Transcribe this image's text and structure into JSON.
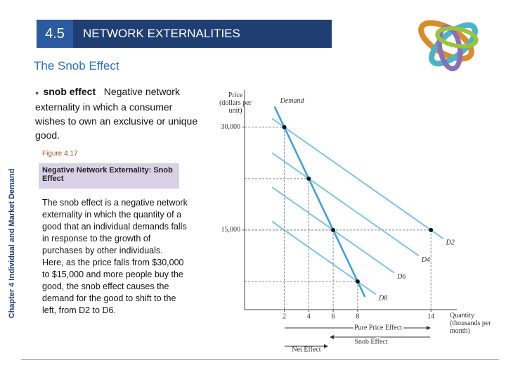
{
  "header": {
    "section": "4.5",
    "title": "NETWORK EXTERNALITIES"
  },
  "subtitle": "The Snob Effect",
  "side_label": "Chapter 4 Individual and Market Demand",
  "bullet": {
    "term": "snob effect",
    "text": "Negative network externality in which a consumer wishes to own an exclusive or unique good."
  },
  "figure": {
    "number": "Figure 4.17",
    "caption": "Negative Network Externality: Snob Effect",
    "paragraphs": [
      "The snob effect is a negative network externality in which the quantity of a good that an individual demands falls in response to the growth of purchases by other individuals.",
      "Here, as the price falls from $30,000 to $15,000 and more people buy the good, the snob effect causes the demand for the good to shift to the left, from D2 to D6."
    ]
  },
  "chart_data": {
    "type": "line",
    "y_label": "Price (dollars per unit)",
    "x_label": "Quantity (thousands per month)",
    "annotations": [
      "Pure Price Effect",
      "Snob Effect",
      "Net Effect"
    ],
    "xlim": [
      -1.25,
      16
    ],
    "ylim": [
      3400,
      35000
    ],
    "xticks": [
      2,
      4,
      6,
      8,
      14
    ],
    "yticks": [
      {
        "value": 15000,
        "label": "15,000"
      },
      {
        "value": 30000,
        "label": "30,000"
      }
    ],
    "series": [
      {
        "name": "Demand",
        "color": "#3a9fd8",
        "x": [
          1.2,
          8.6
        ],
        "values": [
          33000,
          5250
        ]
      },
      {
        "name": "D2",
        "color": "#7fc3e6",
        "x": [
          1.0,
          15.0
        ],
        "values": [
          31250,
          13750
        ]
      },
      {
        "name": "D4",
        "color": "#7fc3e6",
        "x": [
          1.0,
          13.0
        ],
        "values": [
          26250,
          11250
        ]
      },
      {
        "name": "D6",
        "color": "#7fc3e6",
        "x": [
          1.0,
          11.0
        ],
        "values": [
          21250,
          8750
        ]
      },
      {
        "name": "D8",
        "color": "#7fc3e6",
        "x": [
          1.0,
          9.5
        ],
        "values": [
          16250,
          5625
        ]
      }
    ],
    "points": {
      "color": "#111111",
      "x": [
        2,
        4,
        6,
        8,
        14
      ],
      "values": [
        30000,
        22500,
        15000,
        7500,
        15000
      ]
    }
  }
}
